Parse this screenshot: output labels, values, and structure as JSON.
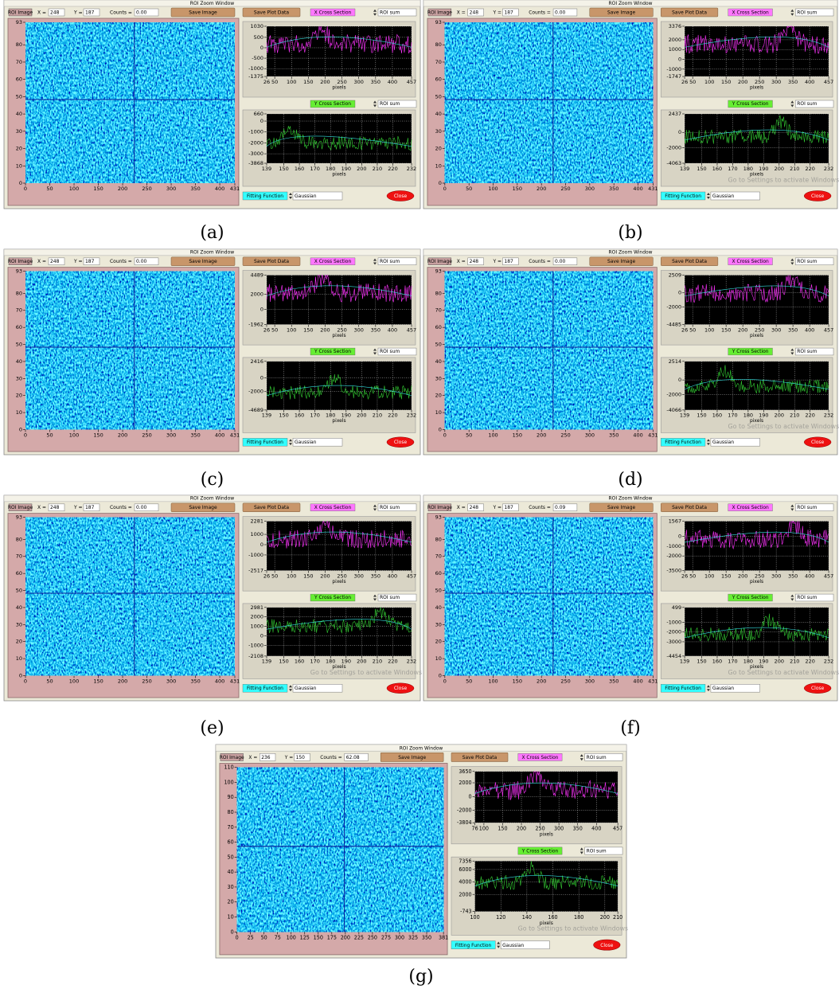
{
  "panels": [
    {
      "caption": "(a)",
      "window_title": "ROI Zoom Window",
      "roi_image": "ROI Image",
      "x_label": "X =",
      "x_value": "248",
      "y_label": "Y =",
      "y_value": "187",
      "counts_label": "Counts =",
      "counts_value": "0.00",
      "save_image": "Save Image",
      "save_plot_data": "Save Plot Data",
      "image": {
        "xlim": [
          0,
          431
        ],
        "ylim": [
          0,
          93
        ],
        "xticks": [
          0,
          50,
          100,
          150,
          200,
          250,
          300,
          350,
          400,
          431
        ],
        "yticks": [
          0,
          10,
          20,
          30,
          40,
          50,
          60,
          70,
          80,
          93
        ]
      },
      "x_cross": {
        "title": "X Cross Section",
        "mode": "ROI sum",
        "xlabel": "pixels",
        "xlim": [
          26,
          457
        ],
        "ylim": [
          -1375,
          1030
        ],
        "xticks": [
          26,
          50,
          100,
          150,
          200,
          250,
          300,
          350,
          400,
          457
        ],
        "yticks": [
          -1375,
          -1000,
          -500,
          0,
          500,
          1030
        ]
      },
      "y_cross": {
        "title": "Y Cross Section",
        "mode": "ROI sum",
        "xlabel": "pixels",
        "xlim": [
          139,
          232
        ],
        "ylim": [
          -3868,
          660
        ],
        "xticks": [
          139,
          150,
          160,
          170,
          180,
          190,
          200,
          210,
          220,
          232
        ],
        "yticks": [
          -3868,
          -3000,
          -2000,
          -1000,
          0,
          660
        ]
      },
      "fitting_label": "Fitting Function",
      "fitting_function": "Gaussian",
      "close": "Close"
    },
    {
      "caption": "(b)",
      "window_title": "ROI Zoom Window",
      "roi_image": "ROI Image",
      "x_label": "X =",
      "x_value": "248",
      "y_label": "Y =",
      "y_value": "187",
      "counts_label": "Counts =",
      "counts_value": "0.00",
      "save_image": "Save Image",
      "save_plot_data": "Save Plot Data",
      "image": {
        "xlim": [
          0,
          431
        ],
        "ylim": [
          0,
          93
        ],
        "xticks": [
          0,
          50,
          100,
          150,
          200,
          250,
          300,
          350,
          400,
          431
        ],
        "yticks": [
          0,
          10,
          20,
          30,
          40,
          50,
          60,
          70,
          80,
          93
        ]
      },
      "x_cross": {
        "title": "X Cross Section",
        "mode": "ROI sum",
        "xlabel": "pixels",
        "xlim": [
          26,
          457
        ],
        "ylim": [
          -1747,
          3376
        ],
        "xticks": [
          26,
          50,
          100,
          150,
          200,
          250,
          300,
          350,
          400,
          457
        ],
        "yticks": [
          -1747,
          -1000,
          0,
          1000,
          2000,
          3376
        ]
      },
      "y_cross": {
        "title": "Y Cross Section",
        "mode": "ROI sum",
        "xlabel": "pixels",
        "xlim": [
          139,
          232
        ],
        "ylim": [
          -4063,
          2437
        ],
        "xticks": [
          139,
          150,
          160,
          170,
          180,
          190,
          200,
          210,
          220,
          232
        ],
        "yticks": [
          -4063,
          -2000,
          0,
          2437
        ]
      },
      "fitting_label": "Fitting Function",
      "fitting_function": "Gaussian",
      "close": "Close",
      "watermark": "Go to Settings to activate Windows"
    },
    {
      "caption": "(c)",
      "window_title": "ROI Zoom Window",
      "roi_image": "ROI Image",
      "x_label": "X =",
      "x_value": "248",
      "y_label": "Y =",
      "y_value": "187",
      "counts_label": "Counts =",
      "counts_value": "0.00",
      "save_image": "Save Image",
      "save_plot_data": "Save Plot Data",
      "image": {
        "xlim": [
          0,
          431
        ],
        "ylim": [
          0,
          93
        ],
        "xticks": [
          0,
          50,
          100,
          150,
          200,
          250,
          300,
          350,
          400,
          431
        ],
        "yticks": [
          0,
          10,
          20,
          30,
          40,
          50,
          60,
          70,
          80,
          93
        ]
      },
      "x_cross": {
        "title": "X Cross Section",
        "mode": "ROI sum",
        "xlabel": "pixels",
        "xlim": [
          26,
          457
        ],
        "ylim": [
          -1962,
          4489
        ],
        "xticks": [
          26,
          50,
          100,
          150,
          200,
          250,
          300,
          350,
          400,
          457
        ],
        "yticks": [
          -1962,
          0,
          2000,
          4489
        ]
      },
      "y_cross": {
        "title": "Y Cross Section",
        "mode": "ROI sum",
        "xlabel": "pixels",
        "xlim": [
          139,
          232
        ],
        "ylim": [
          -4689,
          2416
        ],
        "xticks": [
          139,
          150,
          160,
          170,
          180,
          190,
          200,
          210,
          220,
          232
        ],
        "yticks": [
          -4689,
          -2000,
          0,
          2416
        ]
      },
      "fitting_label": "Fitting Function",
      "fitting_function": "Gaussian",
      "close": "Close"
    },
    {
      "caption": "(d)",
      "window_title": "ROI Zoom Window",
      "roi_image": "ROI Image",
      "x_label": "X =",
      "x_value": "248",
      "y_label": "Y =",
      "y_value": "187",
      "counts_label": "Counts =",
      "counts_value": "0.00",
      "save_image": "Save Image",
      "save_plot_data": "Save Plot Data",
      "image": {
        "xlim": [
          0,
          431
        ],
        "ylim": [
          0,
          93
        ],
        "xticks": [
          0,
          50,
          100,
          150,
          200,
          250,
          300,
          350,
          400,
          431
        ],
        "yticks": [
          0,
          10,
          20,
          30,
          40,
          50,
          60,
          70,
          80,
          93
        ]
      },
      "x_cross": {
        "title": "X Cross Section",
        "mode": "ROI sum",
        "xlabel": "pixels",
        "xlim": [
          26,
          457
        ],
        "ylim": [
          -4485,
          2509
        ],
        "xticks": [
          26,
          50,
          100,
          150,
          200,
          250,
          300,
          350,
          400,
          457
        ],
        "yticks": [
          -4485,
          -2000,
          0,
          2509
        ]
      },
      "y_cross": {
        "title": "Y Cross Section",
        "mode": "ROI sum",
        "xlabel": "pixels",
        "xlim": [
          139,
          232
        ],
        "ylim": [
          -4066,
          2514
        ],
        "xticks": [
          139,
          150,
          160,
          170,
          180,
          190,
          200,
          210,
          220,
          232
        ],
        "yticks": [
          -4066,
          -2000,
          0,
          2514
        ]
      },
      "fitting_label": "Fitting Function",
      "fitting_function": "Gaussian",
      "close": "Close",
      "watermark": "Go to Settings to activate Windows"
    },
    {
      "caption": "(e)",
      "window_title": "ROI Zoom Window",
      "roi_image": "ROI Image",
      "x_label": "X =",
      "x_value": "248",
      "y_label": "Y =",
      "y_value": "187",
      "counts_label": "Counts =",
      "counts_value": "0.00",
      "save_image": "Save Image",
      "save_plot_data": "Save Plot Data",
      "image": {
        "xlim": [
          0,
          431
        ],
        "ylim": [
          0,
          93
        ],
        "xticks": [
          0,
          50,
          100,
          150,
          200,
          250,
          300,
          350,
          400,
          431
        ],
        "yticks": [
          0,
          10,
          20,
          30,
          40,
          50,
          60,
          70,
          80,
          93
        ]
      },
      "x_cross": {
        "title": "X Cross Section",
        "mode": "ROI sum",
        "xlabel": "pixels",
        "xlim": [
          26,
          457
        ],
        "ylim": [
          -2517,
          2281
        ],
        "xticks": [
          26,
          50,
          100,
          150,
          200,
          250,
          300,
          350,
          400,
          457
        ],
        "yticks": [
          -2517,
          -1000,
          0,
          1000,
          2281
        ]
      },
      "y_cross": {
        "title": "Y Cross Section",
        "mode": "ROI sum",
        "xlabel": "pixels",
        "xlim": [
          139,
          232
        ],
        "ylim": [
          -2108,
          2981
        ],
        "xticks": [
          139,
          150,
          160,
          170,
          180,
          190,
          200,
          210,
          220,
          232
        ],
        "yticks": [
          -2108,
          -1000,
          0,
          1000,
          2000,
          2981
        ]
      },
      "fitting_label": "Fitting Function",
      "fitting_function": "Gaussian",
      "close": "Close",
      "watermark": "Go to Settings to activate Windows"
    },
    {
      "caption": "(f)",
      "window_title": "ROI Zoom Window",
      "roi_image": "ROI Image",
      "x_label": "X =",
      "x_value": "248",
      "y_label": "Y =",
      "y_value": "187",
      "counts_label": "Counts =",
      "counts_value": "0.09",
      "save_image": "Save Image",
      "save_plot_data": "Save Plot Data",
      "image": {
        "xlim": [
          0,
          431
        ],
        "ylim": [
          0,
          93
        ],
        "xticks": [
          0,
          50,
          100,
          150,
          200,
          250,
          300,
          350,
          400,
          431
        ],
        "yticks": [
          0,
          10,
          20,
          30,
          40,
          50,
          60,
          70,
          80,
          93
        ]
      },
      "x_cross": {
        "title": "X Cross Section",
        "mode": "ROI sum",
        "xlabel": "pixels",
        "xlim": [
          26,
          457
        ],
        "ylim": [
          -3500,
          1567
        ],
        "xticks": [
          26,
          50,
          100,
          150,
          200,
          250,
          300,
          350,
          400,
          457
        ],
        "yticks": [
          -3500,
          -2000,
          -1000,
          0,
          1567
        ]
      },
      "y_cross": {
        "title": "Y Cross Section",
        "mode": "ROI sum",
        "xlabel": "pixels",
        "xlim": [
          139,
          232
        ],
        "ylim": [
          -4454,
          499
        ],
        "xticks": [
          139,
          150,
          160,
          170,
          180,
          190,
          200,
          210,
          220,
          232
        ],
        "yticks": [
          -4454,
          -3000,
          -2000,
          -1000,
          499
        ]
      },
      "fitting_label": "Fitting Function",
      "fitting_function": "Gaussian",
      "close": "Close",
      "watermark": "Go to Settings to activate Windows"
    },
    {
      "caption": "(g)",
      "window_title": "ROI Zoom Window",
      "roi_image": "ROI Image",
      "x_label": "X =",
      "x_value": "236",
      "y_label": "Y =",
      "y_value": "150",
      "counts_label": "Counts =",
      "counts_value": "62.08",
      "save_image": "Save Image",
      "save_plot_data": "Save Plot Data",
      "image": {
        "xlim": [
          0,
          381
        ],
        "ylim": [
          0,
          110
        ],
        "xticks": [
          0,
          25,
          50,
          75,
          100,
          125,
          150,
          175,
          200,
          225,
          250,
          275,
          300,
          325,
          350,
          381
        ],
        "yticks": [
          0,
          10,
          20,
          30,
          40,
          50,
          60,
          70,
          80,
          90,
          100,
          110
        ]
      },
      "x_cross": {
        "title": "X Cross Section",
        "mode": "ROI sum",
        "xlabel": "pixels",
        "xlim": [
          76,
          457
        ],
        "ylim": [
          -3804,
          3650
        ],
        "xticks": [
          76,
          100,
          150,
          200,
          250,
          300,
          350,
          400,
          457
        ],
        "yticks": [
          -3804,
          -2000,
          0,
          2000,
          3650
        ]
      },
      "y_cross": {
        "title": "Y Cross Section",
        "mode": "ROI sum",
        "xlabel": "pixels",
        "xlim": [
          100,
          210
        ],
        "ylim": [
          -743,
          7356
        ],
        "xticks": [
          100,
          120,
          140,
          160,
          180,
          200,
          210
        ],
        "yticks": [
          -743,
          2000,
          4000,
          6000,
          7356
        ]
      },
      "fitting_label": "Fitting Function",
      "fitting_function": "Gaussian",
      "close": "Close",
      "watermark": "Go to Settings to activate Windows"
    }
  ]
}
